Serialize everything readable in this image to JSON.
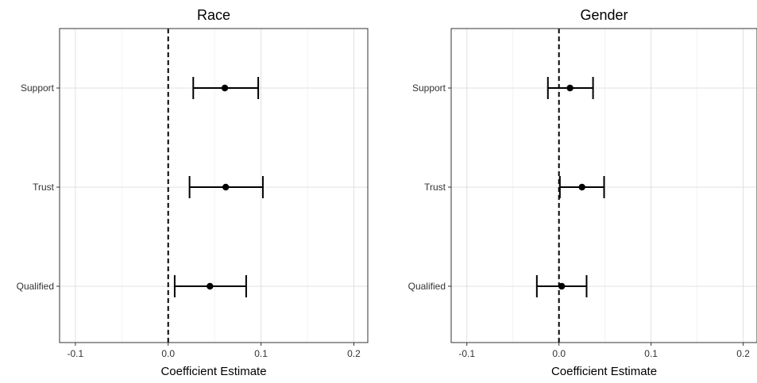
{
  "chart_data": [
    {
      "type": "scatter",
      "title": "Race",
      "xlabel": "Coefficient Estimate",
      "ylabel": "",
      "xlim": [
        -0.117,
        0.215
      ],
      "xticks": [
        -0.1,
        0.0,
        0.1,
        0.2
      ],
      "xtick_labels": [
        "-0.1",
        "0.0",
        "0.1",
        "0.2"
      ],
      "categories": [
        "Support",
        "Trust",
        "Qualified"
      ],
      "points": [
        {
          "label": "Support",
          "estimate": 0.061,
          "lower": 0.027,
          "upper": 0.097
        },
        {
          "label": "Trust",
          "estimate": 0.062,
          "lower": 0.023,
          "upper": 0.102
        },
        {
          "label": "Qualified",
          "estimate": 0.045,
          "lower": 0.007,
          "upper": 0.084
        }
      ],
      "reference_line": 0,
      "grid": true
    },
    {
      "type": "scatter",
      "title": "Gender",
      "xlabel": "Coefficient Estimate",
      "ylabel": "",
      "xlim": [
        -0.117,
        0.215
      ],
      "xticks": [
        -0.1,
        0.0,
        0.1,
        0.2
      ],
      "xtick_labels": [
        "-0.1",
        "0.0",
        "0.1",
        "0.2"
      ],
      "categories": [
        "Support",
        "Trust",
        "Qualified"
      ],
      "points": [
        {
          "label": "Support",
          "estimate": 0.012,
          "lower": -0.012,
          "upper": 0.037
        },
        {
          "label": "Trust",
          "estimate": 0.025,
          "lower": 0.001,
          "upper": 0.049
        },
        {
          "label": "Qualified",
          "estimate": 0.003,
          "lower": -0.024,
          "upper": 0.03
        }
      ],
      "reference_line": 0,
      "grid": true
    }
  ]
}
